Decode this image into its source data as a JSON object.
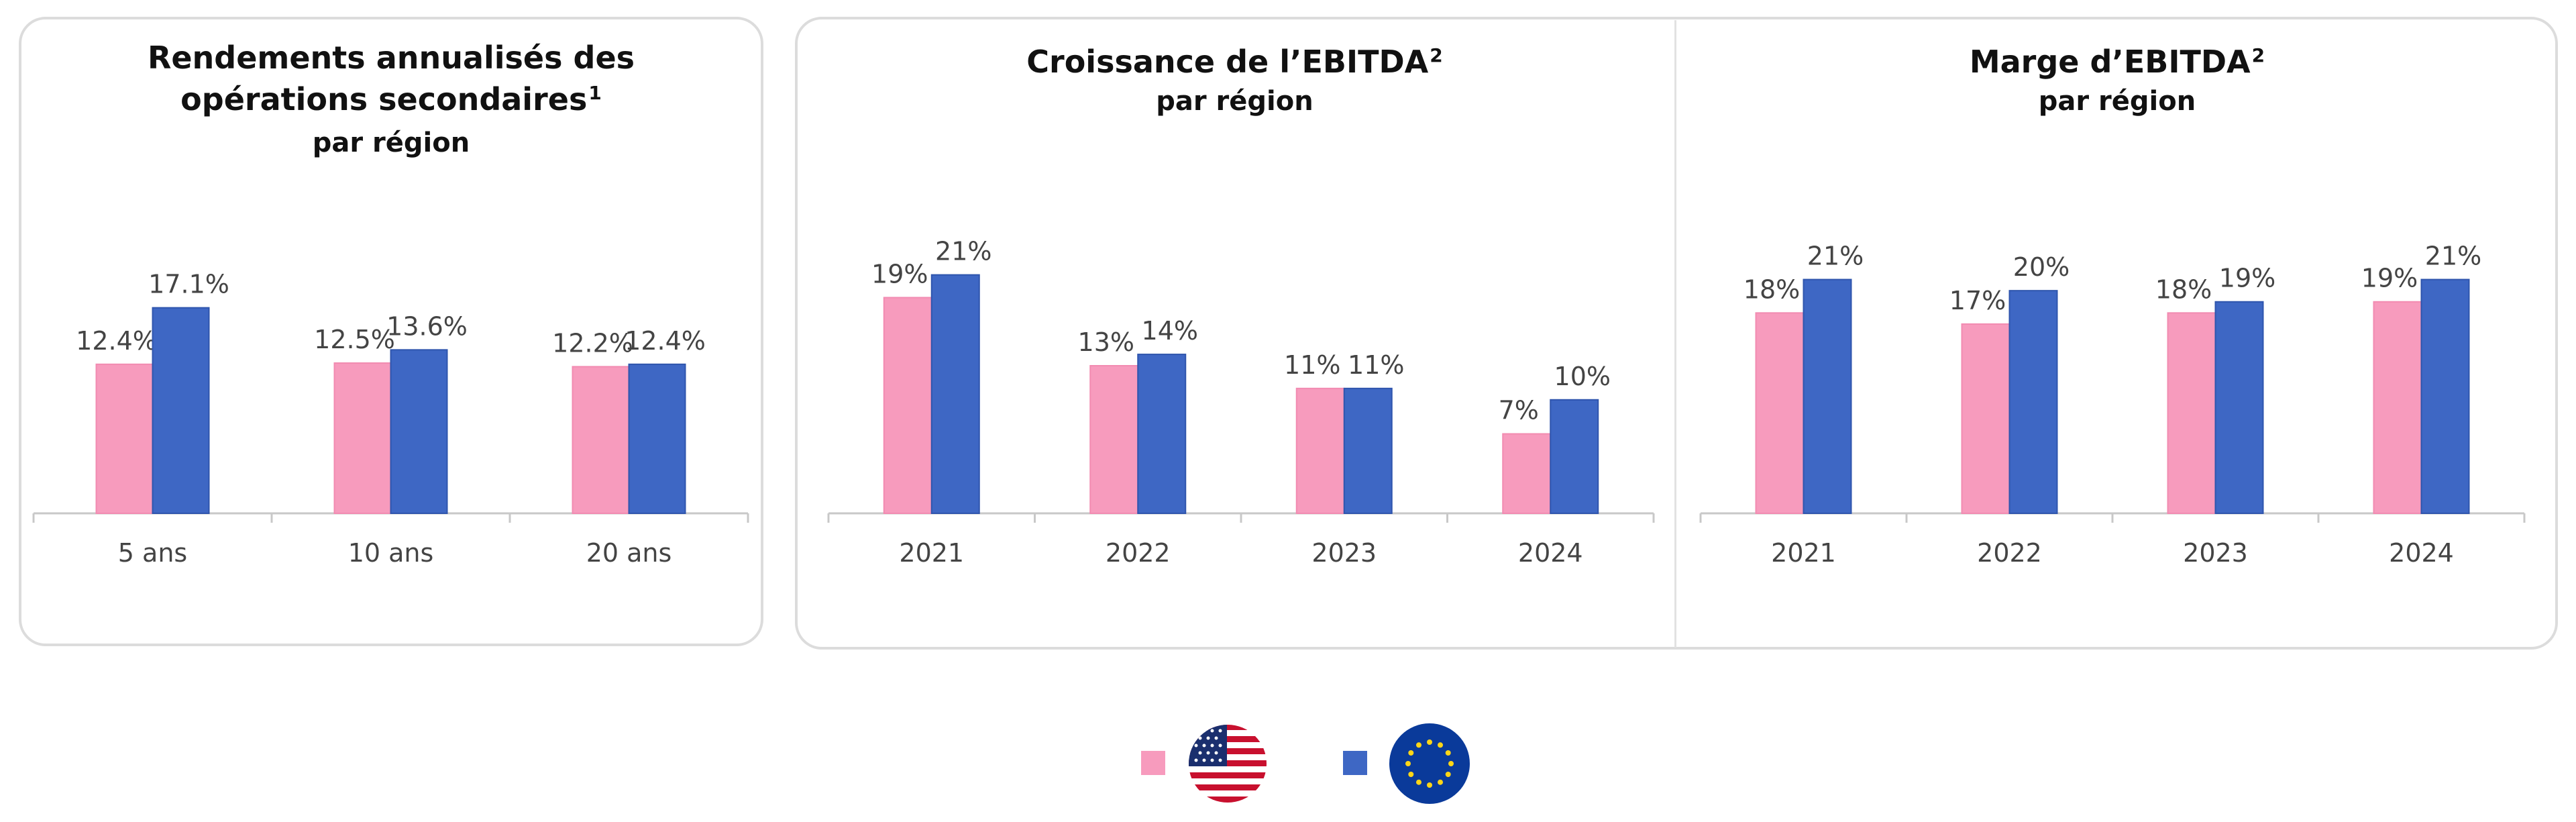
{
  "colors": {
    "us": "#f79bbd",
    "eu": "#3e67c4",
    "axis": "#c8c8c8",
    "label": "#444444"
  },
  "panels": [
    {
      "title_line1": "Rendements annualisés des",
      "title_line2": "opérations secondaires",
      "title_sup": "1",
      "subtitle": "par région"
    },
    {
      "title_line1": "Croissance de l’EBITDA",
      "title_sup": "2",
      "subtitle": "par région"
    },
    {
      "title_line1": "Marge d’EBITDA",
      "title_sup": "2",
      "subtitle": "par région"
    }
  ],
  "legend": {
    "items": [
      {
        "series": "us",
        "icon": "us-flag-icon"
      },
      {
        "series": "eu",
        "icon": "eu-flag-icon"
      }
    ]
  },
  "chart_data": [
    {
      "type": "bar",
      "title": "Rendements annualisés des opérations secondaires¹ par région",
      "categories": [
        "5 ans",
        "10 ans",
        "20 ans"
      ],
      "series": [
        {
          "name": "us",
          "values": [
            12.4,
            12.5,
            12.2
          ],
          "labels": [
            "12.4%",
            "12.5%",
            "12.2%"
          ]
        },
        {
          "name": "eu",
          "values": [
            17.1,
            13.6,
            12.4
          ],
          "labels": [
            "17.1%",
            "13.6%",
            "12.4%"
          ]
        }
      ],
      "ylim": [
        0,
        24
      ],
      "grid": false
    },
    {
      "type": "bar",
      "title": "Croissance de l’EBITDA² par région",
      "categories": [
        "2021",
        "2022",
        "2023",
        "2024"
      ],
      "series": [
        {
          "name": "us",
          "values": [
            19,
            13,
            11,
            7
          ],
          "labels": [
            "19%",
            "13%",
            "11%",
            "7%"
          ]
        },
        {
          "name": "eu",
          "values": [
            21,
            14,
            11,
            10
          ],
          "labels": [
            "21%",
            "14%",
            "11%",
            "10%"
          ]
        }
      ],
      "ylim": [
        0,
        26
      ],
      "grid": false
    },
    {
      "type": "bar",
      "title": "Marge d’EBITDA² par région",
      "categories": [
        "2021",
        "2022",
        "2023",
        "2024"
      ],
      "series": [
        {
          "name": "us",
          "values": [
            18,
            17,
            18,
            19
          ],
          "labels": [
            "18%",
            "17%",
            "18%",
            "19%"
          ]
        },
        {
          "name": "eu",
          "values": [
            21,
            20,
            19,
            21
          ],
          "labels": [
            "21%",
            "20%",
            "19%",
            "21%"
          ]
        }
      ],
      "ylim": [
        0,
        27
      ],
      "grid": false
    }
  ]
}
